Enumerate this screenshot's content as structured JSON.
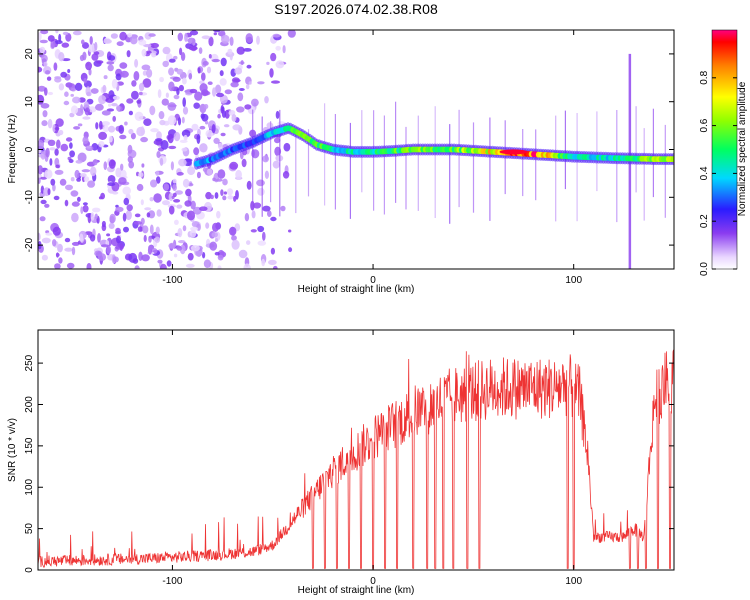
{
  "title": "S197.2026.074.02.38.R08",
  "chart_data": [
    {
      "type": "heatmap",
      "id": "spectrogram",
      "xlabel": "Height of straight line (km)",
      "ylabel": "Frequency (Hz)",
      "xlim": [
        -167,
        150
      ],
      "ylim": [
        -25,
        25
      ],
      "xticks": [
        -100,
        0,
        100
      ],
      "yticks": [
        -20,
        -10,
        0,
        10,
        20
      ],
      "colorbar": {
        "label": "Normalized spectral amplitude",
        "range": [
          0.0,
          1.0
        ],
        "ticks": [
          0.0,
          0.2,
          0.4,
          0.6,
          0.8
        ],
        "tick_labels": [
          "0.0",
          "0.2",
          "0.4",
          "0.6",
          "0.8"
        ]
      },
      "ridge": {
        "description_values": "frequency (Hz) of the main signal track vs height (km)",
        "x": [
          -88,
          -80,
          -70,
          -60,
          -50,
          -42,
          -35,
          -28,
          -20,
          -10,
          0,
          10,
          20,
          40,
          60,
          80,
          100,
          120,
          140,
          150
        ],
        "y": [
          -3,
          -2,
          0,
          1.5,
          3.5,
          4.5,
          3,
          1,
          0,
          -0.5,
          -0.5,
          -0.3,
          0,
          0,
          -0.5,
          -1,
          -1.5,
          -1.8,
          -2,
          -2
        ],
        "amplitude": [
          0.35,
          0.35,
          0.3,
          0.3,
          0.4,
          0.55,
          0.6,
          0.6,
          0.45,
          0.45,
          0.5,
          0.55,
          0.6,
          0.6,
          0.8,
          0.98,
          0.45,
          0.45,
          0.65,
          0.65
        ]
      },
      "noise_region_x": [
        -167,
        -60
      ]
    },
    {
      "type": "line",
      "id": "snr",
      "xlabel": "Height of straight line (km)",
      "ylabel": "SNR (10 * v/v)",
      "xlim": [
        -167,
        150
      ],
      "ylim": [
        0,
        290
      ],
      "xticks": [
        -100,
        0,
        100
      ],
      "yticks": [
        0,
        50,
        100,
        150,
        200,
        250
      ],
      "color": "#ee3333",
      "series": [
        {
          "name": "SNR",
          "x": [
            -167,
            -140,
            -110,
            -80,
            -60,
            -50,
            -40,
            -30,
            -20,
            -10,
            0,
            10,
            20,
            30,
            40,
            50,
            60,
            70,
            80,
            90,
            97,
            103,
            107,
            110,
            115,
            120,
            125,
            130,
            135,
            140,
            145,
            150
          ],
          "y": [
            10,
            12,
            14,
            18,
            22,
            30,
            60,
            90,
            120,
            140,
            160,
            175,
            190,
            200,
            210,
            215,
            220,
            220,
            220,
            220,
            225,
            210,
            140,
            40,
            40,
            40,
            40,
            50,
            40,
            200,
            225,
            230
          ]
        }
      ],
      "dropout_x": [
        -30,
        -24,
        -18,
        -12,
        -6,
        0,
        6,
        12,
        20,
        27,
        31,
        35,
        40,
        47,
        53,
        97,
        100,
        128,
        132,
        136,
        142,
        148
      ]
    }
  ]
}
